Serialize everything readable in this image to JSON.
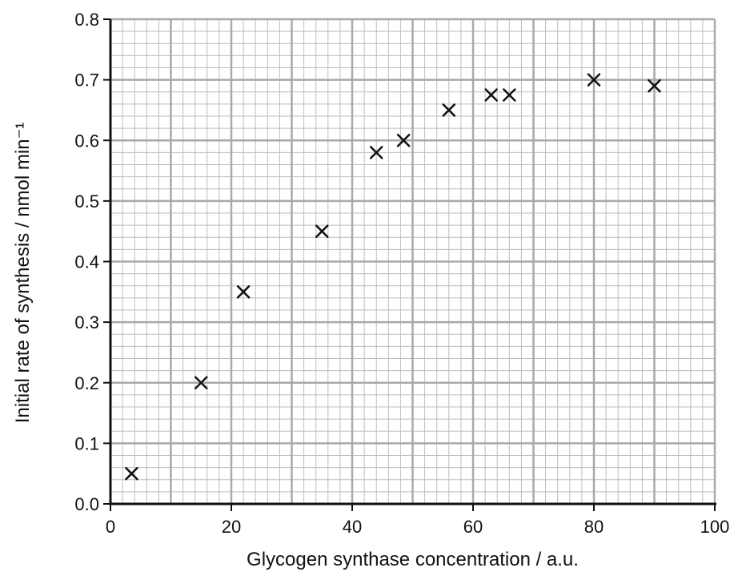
{
  "chart_data": {
    "type": "scatter",
    "title": "",
    "xlabel": "Glycogen synthase concentration / a.u.",
    "ylabel": "Initial rate of synthesis / nmol min⁻¹",
    "xlim": [
      0,
      100
    ],
    "ylim": [
      0,
      0.8
    ],
    "xticks": [
      0,
      20,
      40,
      60,
      80,
      100
    ],
    "yticks": [
      0.0,
      0.1,
      0.2,
      0.3,
      0.4,
      0.5,
      0.6,
      0.7,
      0.8
    ],
    "xtick_labels": [
      "0",
      "20",
      "40",
      "60",
      "80",
      "100"
    ],
    "ytick_labels": [
      "0.0",
      "0.1",
      "0.2",
      "0.3",
      "0.4",
      "0.5",
      "0.6",
      "0.7",
      "0.8"
    ],
    "grid": true,
    "marker": "x",
    "series": [
      {
        "points": [
          {
            "x": 3.5,
            "y": 0.05
          },
          {
            "x": 15,
            "y": 0.2
          },
          {
            "x": 22,
            "y": 0.35
          },
          {
            "x": 35,
            "y": 0.45
          },
          {
            "x": 44,
            "y": 0.58
          },
          {
            "x": 48.5,
            "y": 0.6
          },
          {
            "x": 56,
            "y": 0.65
          },
          {
            "x": 63,
            "y": 0.675
          },
          {
            "x": 66,
            "y": 0.675
          },
          {
            "x": 80,
            "y": 0.7
          },
          {
            "x": 90,
            "y": 0.69
          }
        ]
      }
    ],
    "colors": {
      "major_grid": "#a9a9a9",
      "minor_grid": "#bdbdbd",
      "axis": "#111111",
      "marker": "#111111"
    }
  }
}
